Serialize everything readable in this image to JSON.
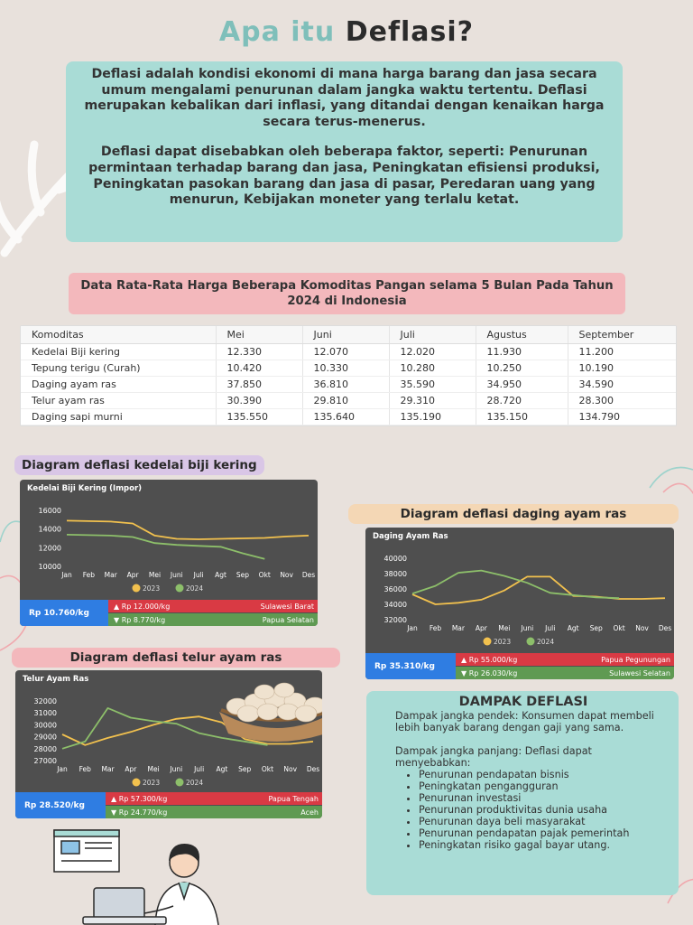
{
  "title": {
    "part1": "Apa itu",
    "part2": "Deflasi?"
  },
  "intro": {
    "p1": "Deflasi adalah kondisi ekonomi di mana harga barang dan jasa secara umum mengalami penurunan dalam jangka waktu tertentu. Deflasi merupakan kebalikan dari inflasi, yang ditandai dengan kenaikan harga secara terus-menerus.",
    "p2": "Deflasi dapat disebabkan oleh beberapa faktor, seperti: Penurunan permintaan terhadap barang dan jasa, Peningkatan efisiensi produksi, Peningkatan pasokan barang dan jasa di pasar, Peredaran uang yang menurun, Kebijakan moneter yang terlalu ketat."
  },
  "table_title": "Data Rata-Rata Harga Beberapa Komoditas Pangan selama 5 Bulan Pada Tahun 2024 di Indonesia",
  "table": {
    "headers": [
      "Komoditas",
      "Mei",
      "Juni",
      "Juli",
      "Agustus",
      "September"
    ],
    "rows": [
      [
        "Kedelai Biji kering",
        "12.330",
        "12.070",
        "12.020",
        "11.930",
        "11.200"
      ],
      [
        "Tepung terigu (Curah)",
        "10.420",
        "10.330",
        "10.280",
        "10.250",
        "10.190"
      ],
      [
        "Daging ayam ras",
        "37.850",
        "36.810",
        "35.590",
        "34.950",
        "34.590"
      ],
      [
        "Telur ayam ras",
        "30.390",
        "29.810",
        "29.310",
        "28.720",
        "28.300"
      ],
      [
        "Daging sapi murni",
        "135.550",
        "135.640",
        "135.190",
        "135.150",
        "134.790"
      ]
    ]
  },
  "colors": {
    "line2023": "#f2c14e",
    "line2024": "#8dbf6a",
    "panel": "#4f4f4f",
    "teal": "#a9dcd6",
    "pink": "#f3b8bc"
  },
  "chart_data": [
    {
      "type": "line",
      "label": "Diagram deflasi kedelai biji kering",
      "title": "Kedelai Biji Kering (Impor)",
      "x": [
        "Jan",
        "Feb",
        "Mar",
        "Apr",
        "Mei",
        "Juni",
        "Juli",
        "Agt",
        "Sep",
        "Okt",
        "Nov",
        "Des"
      ],
      "yticks": [
        "16000",
        "14000",
        "12000",
        "10000"
      ],
      "ylim": [
        10000,
        16000
      ],
      "series": [
        {
          "name": "2023",
          "values": [
            14900,
            14850,
            14800,
            14600,
            13300,
            12950,
            12900,
            12950,
            13000,
            13050,
            13200,
            13300
          ]
        },
        {
          "name": "2024",
          "values": [
            13400,
            13350,
            13300,
            13150,
            12500,
            12300,
            12200,
            12100,
            11400,
            10800,
            null,
            null
          ]
        }
      ],
      "price_main": "Rp 10.760/kg",
      "up": {
        "price": "Rp 12.000/kg",
        "region": "Sulawesi Barat"
      },
      "down": {
        "price": "Rp 8.770/kg",
        "region": "Papua Selatan"
      }
    },
    {
      "type": "line",
      "label": "Diagram deflasi daging ayam ras",
      "title": "Daging Ayam Ras",
      "x": [
        "Jan",
        "Feb",
        "Mar",
        "Apr",
        "Mei",
        "Juni",
        "Juli",
        "Agt",
        "Sep",
        "Okt",
        "Nov",
        "Des"
      ],
      "yticks": [
        "40000",
        "38000",
        "36000",
        "34000",
        "32000"
      ],
      "ylim": [
        32000,
        40000
      ],
      "series": [
        {
          "name": "2023",
          "values": [
            35300,
            34000,
            34200,
            34600,
            35800,
            37600,
            37600,
            35100,
            35000,
            34700,
            34700,
            34800
          ]
        },
        {
          "name": "2024",
          "values": [
            35400,
            36400,
            38100,
            38400,
            37700,
            36800,
            35500,
            35200,
            34900,
            34800,
            null,
            null
          ]
        }
      ],
      "price_main": "Rp 35.310/kg",
      "up": {
        "price": "Rp 55.000/kg",
        "region": "Papua Pegunungan"
      },
      "down": {
        "price": "Rp 26.030/kg",
        "region": "Sulawesi Selatan"
      }
    },
    {
      "type": "line",
      "label": "Diagram deflasi telur ayam ras",
      "title": "Telur Ayam Ras",
      "x": [
        "Jan",
        "Feb",
        "Mar",
        "Apr",
        "Mei",
        "Juni",
        "Juli",
        "Agt",
        "Sep",
        "Okt",
        "Nov",
        "Des"
      ],
      "yticks": [
        "32000",
        "31000",
        "30000",
        "29000",
        "28000",
        "27000"
      ],
      "ylim": [
        27000,
        32000
      ],
      "series": [
        {
          "name": "2023",
          "values": [
            29200,
            28300,
            28900,
            29400,
            30000,
            30500,
            30700,
            30200,
            28800,
            28400,
            28400,
            28600
          ]
        },
        {
          "name": "2024",
          "values": [
            28000,
            28600,
            31400,
            30600,
            30300,
            30100,
            29300,
            28900,
            28600,
            28300,
            null,
            null
          ]
        }
      ],
      "price_main": "Rp 28.520/kg",
      "up": {
        "price": "Rp 57.300/kg",
        "region": "Papua Tengah"
      },
      "down": {
        "price": "Rp 24.770/kg",
        "region": "Aceh"
      }
    }
  ],
  "legend": {
    "a": "2023",
    "b": "2024"
  },
  "dampak": {
    "title": "DAMPAK DEFLASI",
    "short": "Dampak jangka pendek: Konsumen dapat membeli lebih banyak barang dengan gaji yang sama.",
    "long": "Dampak jangka panjang: Deflasi dapat menyebabkan:",
    "items": [
      "Penurunan pendapatan bisnis",
      "Peningkatan pengangguran",
      "Penurunan investasi",
      "Penurunan produktivitas dunia usaha",
      "Penurunan daya beli masyarakat",
      "Penurunan pendapatan pajak pemerintah",
      "Peningkatan risiko gagal bayar utang."
    ]
  }
}
